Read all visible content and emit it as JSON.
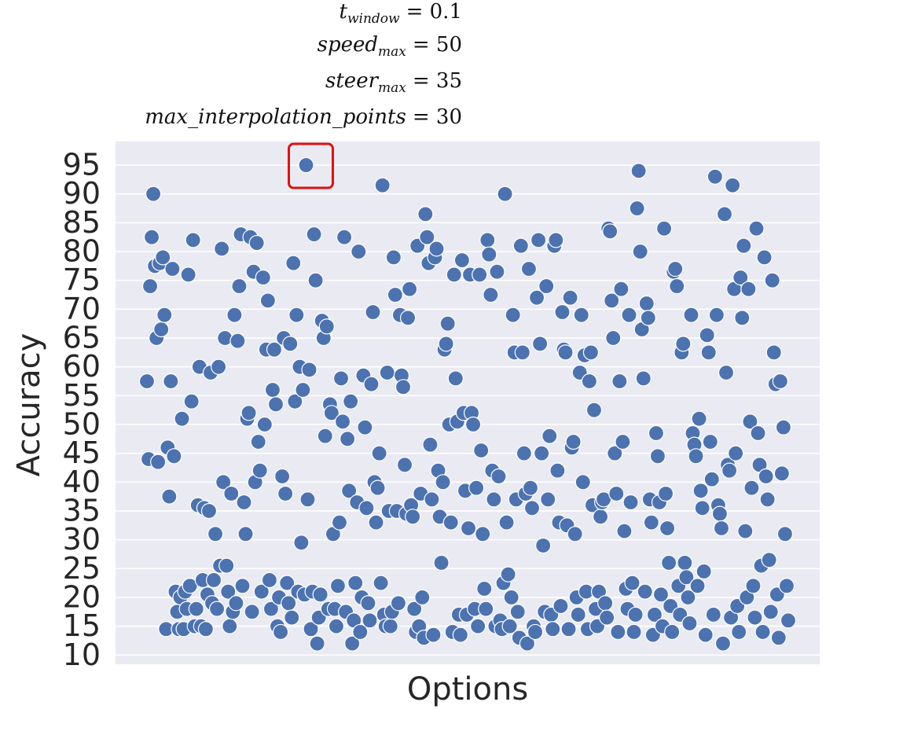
{
  "chart_data": {
    "type": "scatter",
    "annotations": [
      {
        "symbol": "t",
        "subscript": "window",
        "rhs": "= 0.1"
      },
      {
        "symbol": "speed",
        "subscript": "max",
        "rhs": "= 50"
      },
      {
        "symbol": "steer",
        "subscript": "max",
        "rhs": "= 35"
      },
      {
        "symbol": "max_interpolation_points",
        "rhs": "= 30"
      }
    ],
    "xlabel": "Options",
    "ylabel": "Accuracy",
    "color": "#4c72b0",
    "grid": true,
    "ylim": [
      8.4,
      99.1
    ],
    "yticks": [
      10,
      15,
      20,
      25,
      30,
      35,
      40,
      45,
      50,
      55,
      60,
      65,
      70,
      75,
      80,
      85,
      90,
      95
    ],
    "values": [
      57.5,
      44,
      74,
      82.5,
      90,
      77.5,
      65,
      43.5,
      78,
      66.5,
      79,
      69,
      14.5,
      46,
      37.5,
      57.5,
      77,
      44.5,
      21,
      17.5,
      14.5,
      20,
      51,
      14.5,
      21,
      18,
      76,
      22,
      54,
      82,
      15,
      18,
      36,
      60,
      15,
      23,
      35.5,
      14.5,
      20.5,
      35,
      59,
      19,
      23,
      31,
      18,
      60,
      25.5,
      80.5,
      40,
      65,
      25.5,
      21,
      15,
      38,
      17.5,
      69,
      19,
      64.5,
      74,
      83,
      22,
      36.5,
      31,
      51,
      52,
      82.5,
      17.5,
      76.5,
      40,
      81.5,
      47,
      42,
      21,
      75.5,
      50,
      63,
      71.5,
      23,
      18,
      56,
      63,
      53.5,
      15,
      20,
      14,
      41,
      65,
      38,
      22.5,
      19,
      64,
      16.5,
      78,
      54,
      69,
      21,
      60,
      29.5,
      56,
      20.5,
      95,
      37,
      59.5,
      14.5,
      21,
      83,
      75,
      12,
      16.5,
      20.5,
      68,
      65,
      48,
      67,
      18,
      53.5,
      52,
      31,
      18,
      15,
      22,
      33,
      58,
      50.5,
      82.5,
      17.5,
      47.5,
      38.5,
      54,
      12,
      16,
      22.5,
      36.5,
      80,
      14,
      20,
      58.5,
      49.5,
      35.5,
      19,
      16,
      57,
      69.5,
      40,
      33,
      39,
      45,
      22.5,
      91.5,
      17,
      15,
      59,
      35,
      15,
      17.5,
      79,
      72.5,
      35,
      19,
      69,
      58.5,
      56.5,
      43,
      34.5,
      68.5,
      73.5,
      36,
      34,
      18,
      14,
      81,
      15,
      38,
      20,
      13,
      86.5,
      82.5,
      78,
      46.5,
      37,
      13.5,
      79,
      80.5,
      42,
      34,
      26,
      40,
      63,
      64,
      67.5,
      50,
      33,
      14,
      76,
      58,
      50.5,
      17,
      13.5,
      78.5,
      52,
      38.5,
      17,
      32,
      76,
      52,
      50,
      18,
      39,
      15,
      76,
      45.5,
      31,
      21.5,
      18,
      82,
      79.5,
      72.5,
      42,
      37,
      15,
      76.5,
      41,
      16,
      14.5,
      22.5,
      90,
      33,
      24,
      15,
      20,
      69,
      62.5,
      37,
      17.5,
      13,
      81,
      62.5,
      45,
      38,
      12,
      77,
      39,
      35.5,
      15,
      14,
      72,
      82,
      64,
      45,
      29,
      17.5,
      74,
      37,
      48,
      17,
      14.5,
      81,
      82,
      42,
      33,
      18.5,
      69.5,
      63,
      62.5,
      32.5,
      14.5,
      72,
      46,
      47,
      31,
      20,
      17,
      59,
      69,
      40,
      62,
      21,
      14.5,
      57.5,
      62.5,
      36,
      52.5,
      18,
      15,
      21,
      34,
      36.5,
      37,
      19,
      16.5,
      84,
      83.5,
      71.5,
      65,
      45,
      38,
      14,
      57.5,
      73.5,
      47,
      31.5,
      21.5,
      18,
      69,
      36.5,
      22.5,
      14,
      17,
      87.5,
      94,
      80,
      66.5,
      58,
      21,
      71,
      68.5,
      37,
      33,
      13.5,
      17,
      48.5,
      44.5,
      36.5,
      20.5,
      15,
      84,
      38,
      32,
      26,
      18.5,
      14,
      76.5,
      77,
      74,
      22,
      17,
      62.5,
      64,
      26,
      23.5,
      20,
      15.5,
      69,
      48.5,
      46.5,
      44.5,
      22,
      51,
      38.5,
      35.5,
      24.5,
      13.5,
      65.5,
      62.5,
      47,
      40.5,
      17,
      93,
      69,
      36,
      34.5,
      32,
      12,
      86.5,
      59,
      43,
      42,
      16.5,
      91.5,
      73.5,
      45,
      18.5,
      14,
      75.5,
      68.5,
      81,
      31.5,
      20,
      73.5,
      50.5,
      39,
      22,
      16.5,
      84,
      48.5,
      43,
      25.5,
      14,
      79,
      41,
      37,
      26.5,
      17.5,
      75,
      62.5,
      57,
      20.5,
      13,
      57.5,
      41.5,
      49.5,
      31,
      22,
      16
    ]
  }
}
